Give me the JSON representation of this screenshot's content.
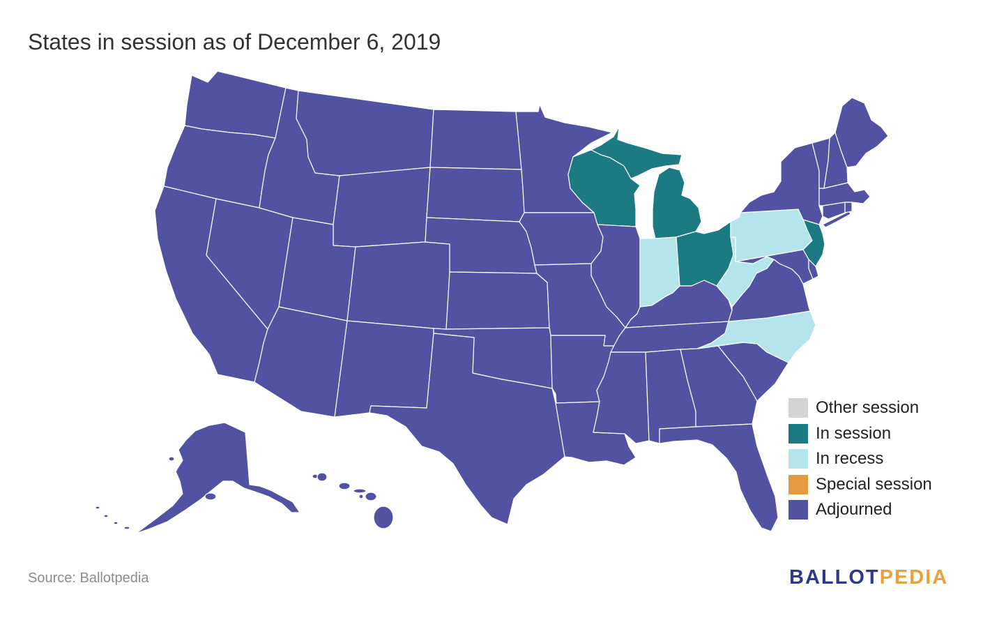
{
  "title": "States in session as of December 6, 2019",
  "legend": [
    {
      "label": "Other session",
      "color": "#d4d4d4"
    },
    {
      "label": "In session",
      "color": "#1b7a82"
    },
    {
      "label": "In recess",
      "color": "#b4e5ed"
    },
    {
      "label": "Special session",
      "color": "#e49b40"
    },
    {
      "label": "Adjourned",
      "color": "#5252a3"
    }
  ],
  "state_status": {
    "AL": 4,
    "AK": 4,
    "AZ": 4,
    "AR": 4,
    "CA": 4,
    "CO": 4,
    "CT": 4,
    "DE": 4,
    "FL": 4,
    "GA": 4,
    "HI": 4,
    "ID": 4,
    "IL": 4,
    "IN": 2,
    "IA": 4,
    "KS": 4,
    "KY": 4,
    "LA": 4,
    "ME": 4,
    "MD": 4,
    "MA": 4,
    "MI": 1,
    "MN": 4,
    "MS": 4,
    "MO": 4,
    "MT": 4,
    "NE": 4,
    "NV": 4,
    "NH": 4,
    "NJ": 1,
    "NM": 4,
    "NY": 4,
    "NC": 2,
    "ND": 4,
    "OH": 1,
    "OK": 4,
    "OR": 4,
    "PA": 2,
    "RI": 4,
    "SC": 4,
    "SD": 4,
    "TN": 4,
    "TX": 4,
    "UT": 4,
    "VT": 4,
    "VA": 4,
    "WA": 4,
    "WV": 2,
    "WI": 1,
    "WY": 4
  },
  "source": "Source: Ballotpedia",
  "logo": {
    "part1": "BALLOT",
    "part2": "PEDIA"
  }
}
